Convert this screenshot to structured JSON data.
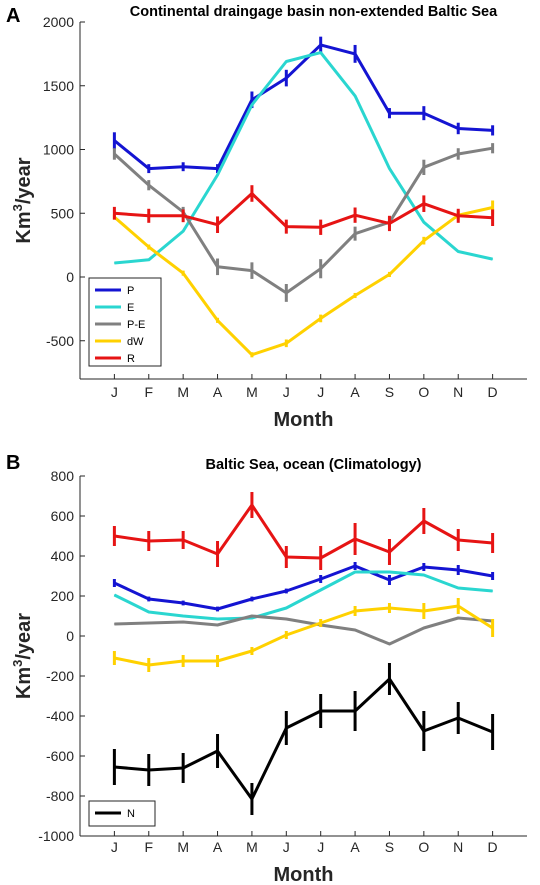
{
  "chart_data": [
    {
      "panel_label": "A",
      "type": "line",
      "title": "Continental draingage basin non-extended Baltic Sea",
      "xlabel": "Month",
      "ylabel_base": "Km",
      "ylabel_exp": "3",
      "ylabel_rest": "/year",
      "categories": [
        "J",
        "F",
        "M",
        "A",
        "M",
        "J",
        "J",
        "A",
        "S",
        "O",
        "N",
        "D"
      ],
      "ylim": [
        -800,
        2000
      ],
      "yticks": [
        -500,
        0,
        500,
        1000,
        1500,
        2000
      ],
      "legend_position": "lower-left",
      "series": [
        {
          "name": "P",
          "color": "#1414d2",
          "values": [
            1070,
            850,
            865,
            850,
            1390,
            1560,
            1820,
            1750,
            1285,
            1285,
            1165,
            1150
          ],
          "errors": [
            65,
            35,
            35,
            35,
            65,
            65,
            65,
            70,
            40,
            55,
            45,
            40
          ]
        },
        {
          "name": "E",
          "color": "#2ad6d0",
          "values": [
            110,
            135,
            360,
            800,
            1350,
            1690,
            1760,
            1420,
            850,
            430,
            200,
            140
          ],
          "errors": null
        },
        {
          "name": "P-E",
          "color": "#808080",
          "values": [
            965,
            720,
            510,
            80,
            50,
            -125,
            65,
            340,
            430,
            860,
            965,
            1010
          ],
          "errors": [
            45,
            40,
            40,
            65,
            65,
            70,
            75,
            55,
            40,
            60,
            45,
            40
          ]
        },
        {
          "name": "dW",
          "color": "#ffd100",
          "values": [
            470,
            235,
            30,
            -340,
            -610,
            -520,
            -325,
            -145,
            20,
            285,
            485,
            545
          ],
          "errors": [
            20,
            20,
            20,
            20,
            20,
            30,
            30,
            20,
            20,
            30,
            35,
            55
          ]
        },
        {
          "name": "R",
          "color": "#e61414",
          "values": [
            500,
            480,
            480,
            410,
            655,
            395,
            390,
            485,
            420,
            575,
            480,
            465
          ],
          "errors": [
            50,
            55,
            50,
            65,
            65,
            55,
            60,
            60,
            60,
            65,
            55,
            65
          ]
        }
      ]
    },
    {
      "panel_label": "B",
      "type": "line",
      "title": "Baltic Sea, ocean (Climatology)",
      "xlabel": "Month",
      "ylabel_base": "Km",
      "ylabel_exp": "3",
      "ylabel_rest": "/year",
      "categories": [
        "J",
        "F",
        "M",
        "A",
        "M",
        "J",
        "J",
        "A",
        "S",
        "O",
        "N",
        "D"
      ],
      "ylim": [
        -1000,
        800
      ],
      "yticks": [
        -1000,
        -800,
        -600,
        -400,
        -200,
        0,
        200,
        400,
        600,
        800
      ],
      "legend_position": "lower-left",
      "legend_series": [
        "N"
      ],
      "series": [
        {
          "name": "P",
          "color": "#1414d2",
          "values": [
            265,
            185,
            165,
            135,
            185,
            225,
            285,
            350,
            280,
            345,
            330,
            300
          ],
          "errors": [
            20,
            12,
            12,
            12,
            12,
            12,
            20,
            20,
            25,
            20,
            25,
            20
          ]
        },
        {
          "name": "E",
          "color": "#2ad6d0",
          "values": [
            205,
            120,
            100,
            85,
            90,
            140,
            230,
            320,
            320,
            305,
            240,
            225
          ],
          "errors": null
        },
        {
          "name": "P-E",
          "color": "#808080",
          "values": [
            60,
            65,
            70,
            55,
            100,
            85,
            55,
            30,
            -40,
            40,
            90,
            75
          ],
          "errors": null
        },
        {
          "name": "dW",
          "color": "#ffd100",
          "values": [
            -110,
            -145,
            -125,
            -125,
            -75,
            5,
            65,
            125,
            140,
            125,
            150,
            40
          ],
          "errors": [
            35,
            35,
            30,
            30,
            20,
            20,
            20,
            25,
            25,
            40,
            40,
            45
          ]
        },
        {
          "name": "R",
          "color": "#e61414",
          "values": [
            500,
            475,
            480,
            410,
            655,
            395,
            390,
            485,
            420,
            575,
            480,
            465
          ],
          "errors": [
            50,
            50,
            45,
            65,
            65,
            55,
            60,
            80,
            65,
            65,
            55,
            50
          ]
        },
        {
          "name": "N",
          "color": "#000000",
          "values": [
            -655,
            -670,
            -660,
            -575,
            -815,
            -460,
            -375,
            -375,
            -215,
            -475,
            -410,
            -480
          ],
          "errors": [
            90,
            80,
            75,
            85,
            80,
            85,
            85,
            100,
            80,
            100,
            80,
            90
          ]
        }
      ]
    }
  ]
}
